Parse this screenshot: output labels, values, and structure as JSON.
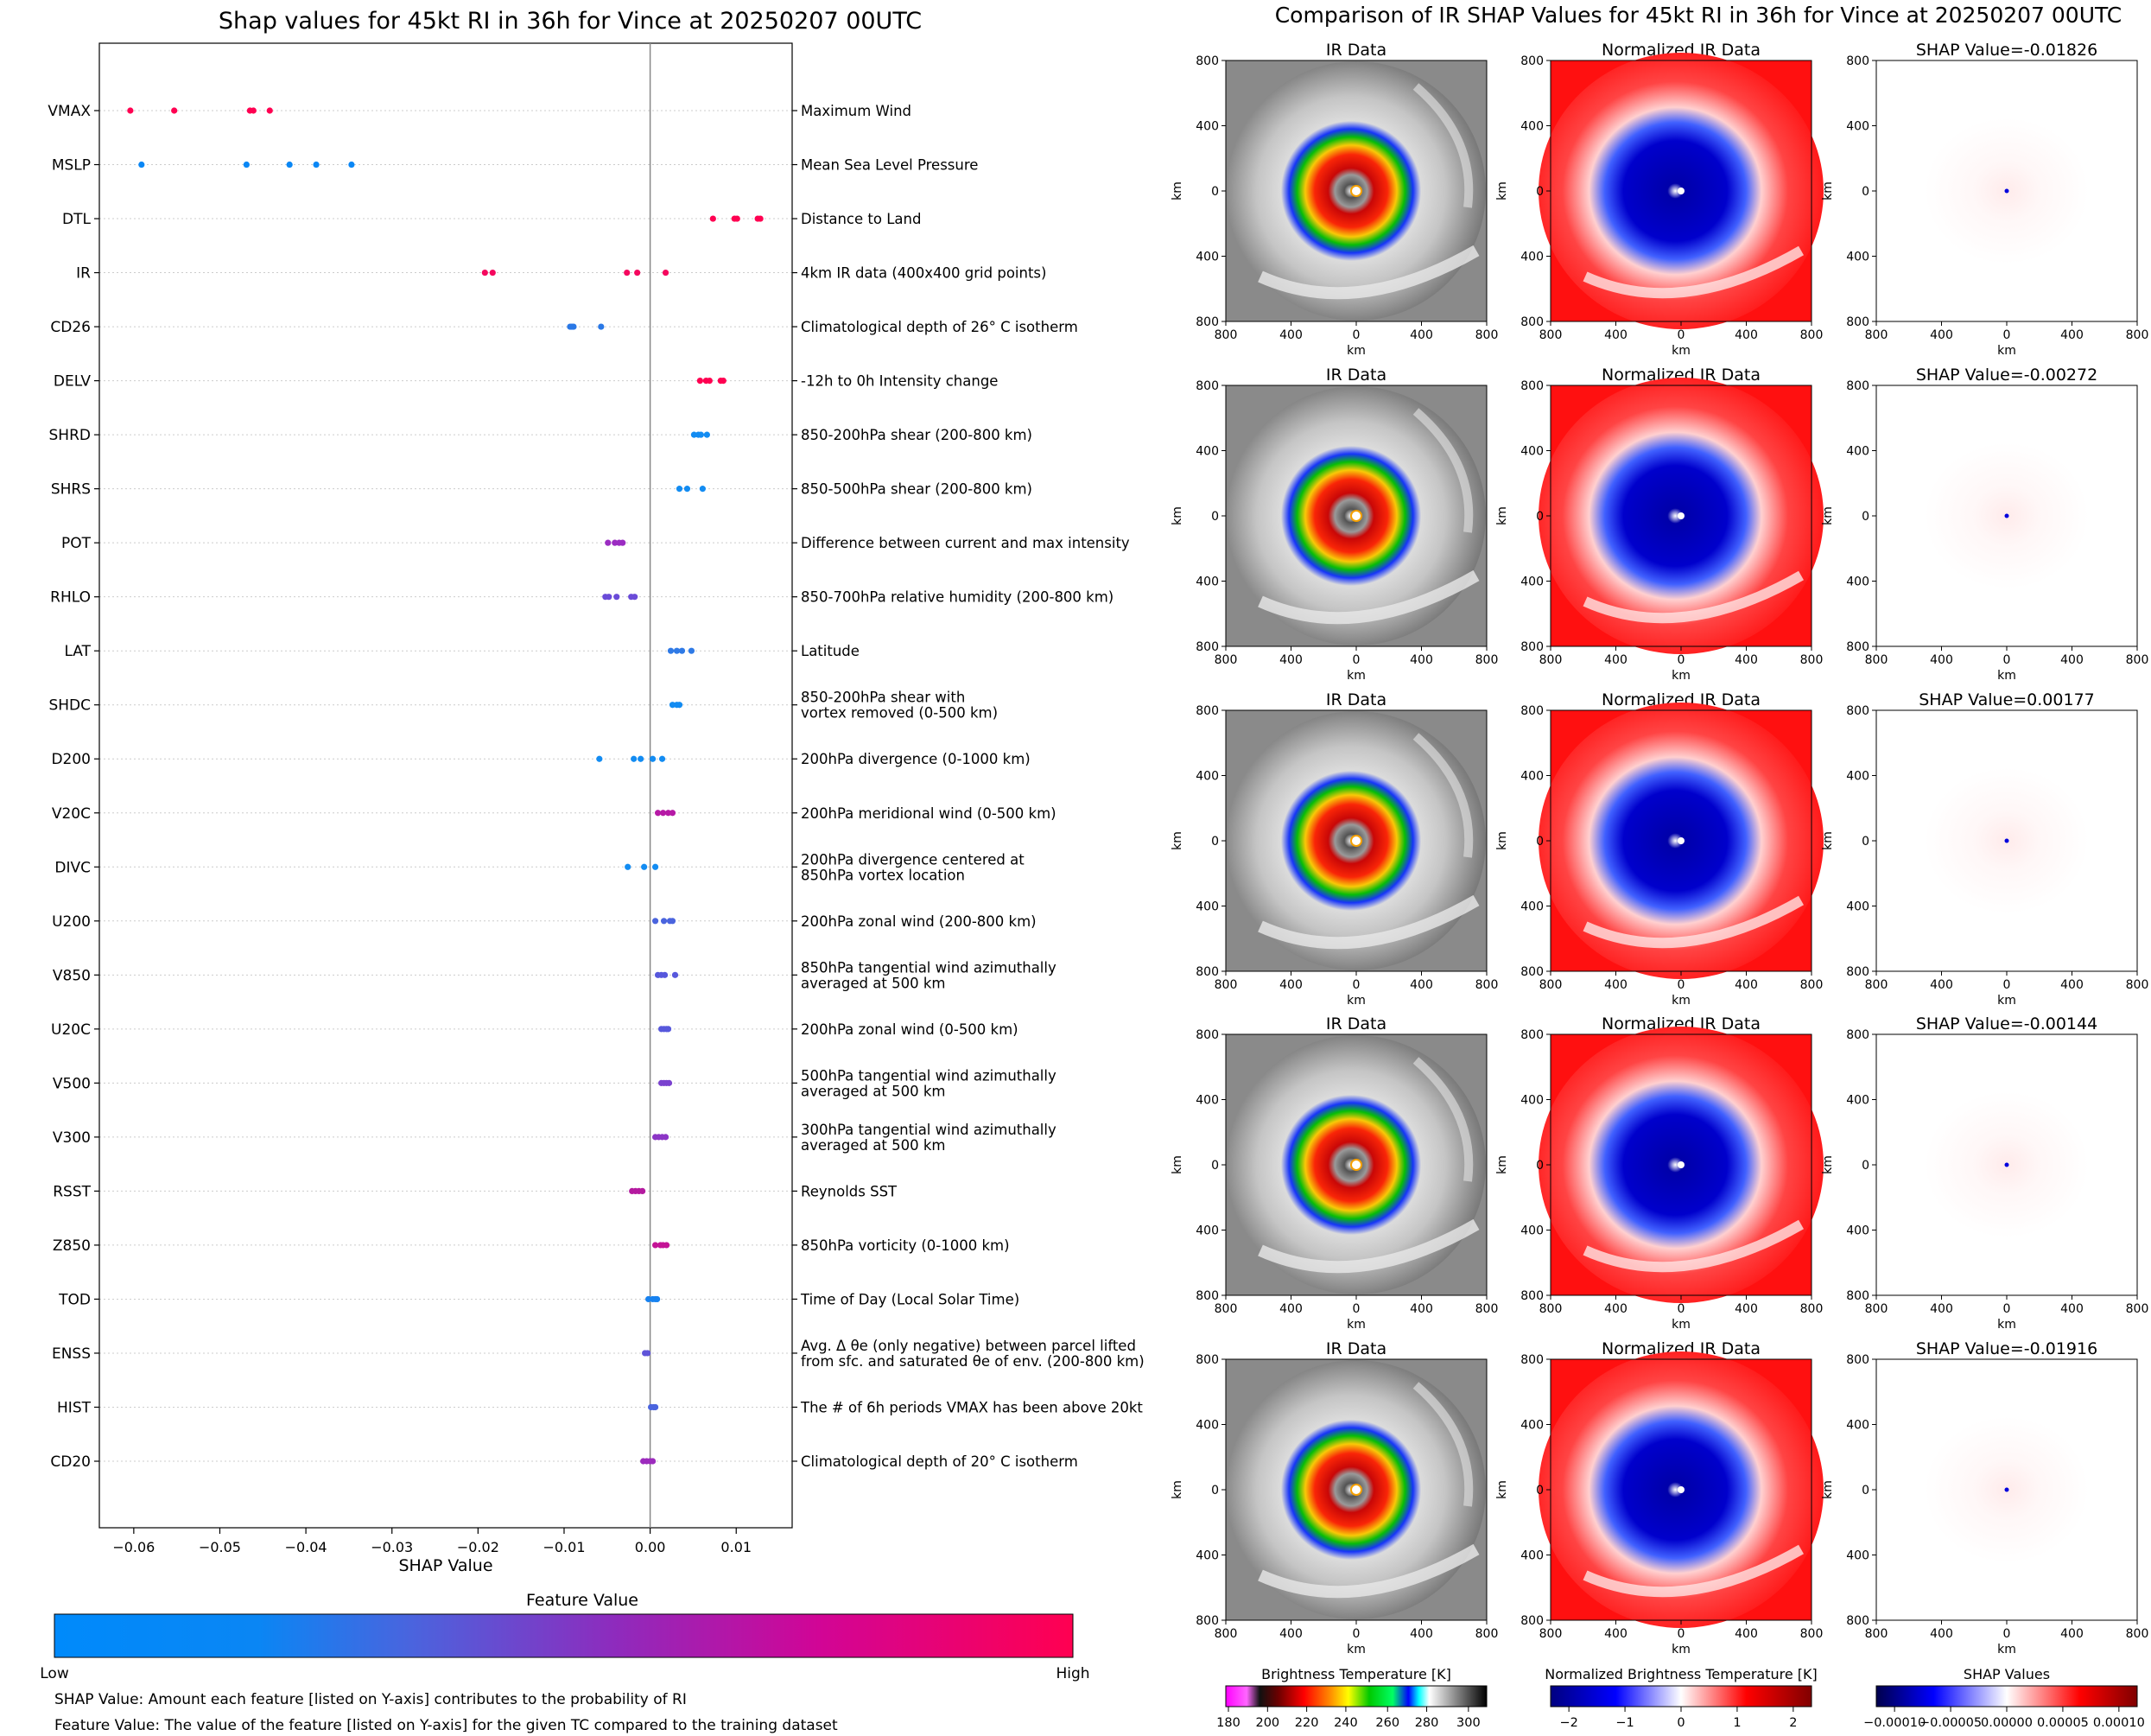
{
  "left": {
    "title": "Shap values for 45kt RI in 36h for Vince at 20250207 00UTC",
    "xlabel": "SHAP Value",
    "colorbar_title": "Feature Value",
    "colorbar_low": "Low",
    "colorbar_high": "High",
    "note1": "SHAP Value: Amount each feature [listed on Y-axis] contributes to the probability of RI",
    "note2": "Feature Value: The value of the feature [listed on Y-axis] for the given TC compared to the training dataset"
  },
  "right": {
    "title": "Comparison of IR SHAP Values for 45kt RI in 36h for Vince at 20250207 00UTC",
    "col_ir": "IR Data",
    "col_norm": "Normalized IR Data",
    "shap_prefix": "SHAP Value=",
    "shap_values": [
      "-0.01826",
      "-0.00272",
      "0.00177",
      "-0.00144",
      "-0.01916"
    ],
    "axis_label": "km",
    "axis_ticks": [
      "800",
      "400",
      "0",
      "400",
      "800"
    ],
    "cb_ir_title": "Brightness Temperature [K]",
    "cb_ir_ticks": [
      "180",
      "200",
      "220",
      "240",
      "260",
      "280",
      "300"
    ],
    "cb_norm_title": "Normalized Brightness Temperature [K]",
    "cb_norm_ticks": [
      "−2",
      "−1",
      "0",
      "1",
      "2"
    ],
    "cb_shap_title": "SHAP Values",
    "cb_shap_ticks": [
      "−0.00010",
      "−0.00005",
      "0.00000",
      "0.00005",
      "0.00010"
    ]
  },
  "colors": {
    "low": "#008afb",
    "mid": "#8e2bbd",
    "high": "#ff0051"
  },
  "chart_data": {
    "type": "scatter",
    "title": "Shap values for 45kt RI in 36h for Vince at 20250207 00UTC",
    "xlabel": "SHAP Value",
    "xlim": [
      -0.064,
      0.0165
    ],
    "xticks": [
      {
        "v": -0.06,
        "label": "−0.06"
      },
      {
        "v": -0.05,
        "label": "−0.05"
      },
      {
        "v": -0.04,
        "label": "−0.04"
      },
      {
        "v": -0.03,
        "label": "−0.03"
      },
      {
        "v": -0.02,
        "label": "−0.02"
      },
      {
        "v": -0.01,
        "label": "−0.01"
      },
      {
        "v": 0.0,
        "label": "0.00"
      },
      {
        "v": 0.01,
        "label": "0.01"
      }
    ],
    "features": [
      {
        "name": "VMAX",
        "desc": [
          "Maximum Wind"
        ],
        "color": "#ff0051",
        "values": [
          -0.0604,
          -0.0553,
          -0.0465,
          -0.0461,
          -0.0442
        ]
      },
      {
        "name": "MSLP",
        "desc": [
          "Mean Sea Level Pressure"
        ],
        "color": "#0a87f5",
        "values": [
          -0.0591,
          -0.0469,
          -0.0419,
          -0.0388,
          -0.0347
        ]
      },
      {
        "name": "DTL",
        "desc": [
          "Distance to Land"
        ],
        "color": "#ff0051",
        "values": [
          0.0073,
          0.0098,
          0.0101,
          0.0125,
          0.0128
        ]
      },
      {
        "name": "IR",
        "desc": [
          "4km IR data (400x400 grid points)"
        ],
        "color": "#f5075e",
        "values": [
          -0.0192,
          -0.0183,
          -0.0027,
          -0.0015,
          0.0018
        ]
      },
      {
        "name": "CD26",
        "desc": [
          "Climatological depth of 26° C isotherm"
        ],
        "color": "#2a78e6",
        "values": [
          -0.0093,
          -0.0091,
          -0.0089,
          -0.0057
        ]
      },
      {
        "name": "DELV",
        "desc": [
          "-12h to 0h Intensity change"
        ],
        "color": "#ff0051",
        "values": [
          0.0058,
          0.0065,
          0.0069,
          0.0082,
          0.0085
        ]
      },
      {
        "name": "SHRD",
        "desc": [
          "850-200hPa shear (200-800 km)"
        ],
        "color": "#138cf2",
        "values": [
          0.0051,
          0.0056,
          0.0059,
          0.0066
        ]
      },
      {
        "name": "SHRS",
        "desc": [
          "850-500hPa shear (200-800 km)"
        ],
        "color": "#138cf2",
        "values": [
          0.0034,
          0.0043,
          0.0061
        ]
      },
      {
        "name": "POT",
        "desc": [
          "Difference between current and max intensity"
        ],
        "color": "#9b2cc2",
        "values": [
          -0.0049,
          -0.0041,
          -0.0036,
          -0.0032
        ]
      },
      {
        "name": "RHLO",
        "desc": [
          "850-700hPa relative humidity (200-800 km)"
        ],
        "color": "#6a4bd8",
        "values": [
          -0.0052,
          -0.0048,
          -0.0039,
          -0.0022,
          -0.0018
        ]
      },
      {
        "name": "LAT",
        "desc": [
          "Latitude"
        ],
        "color": "#2f7ae6",
        "values": [
          0.0024,
          0.0031,
          0.0037,
          0.0048
        ]
      },
      {
        "name": "SHDC",
        "desc": [
          "850-200hPa shear with",
          "vortex removed (0-500 km)"
        ],
        "color": "#138cf2",
        "values": [
          0.0026,
          0.0031,
          0.0034
        ]
      },
      {
        "name": "D200",
        "desc": [
          "200hPa divergence (0-1000 km)"
        ],
        "color": "#138cf2",
        "values": [
          -0.0059,
          -0.0019,
          -0.0011,
          0.0003,
          0.0014
        ]
      },
      {
        "name": "V20C",
        "desc": [
          "200hPa meridional wind (0-500 km)"
        ],
        "color": "#b61aa6",
        "values": [
          0.0009,
          0.0015,
          0.0021,
          0.0026
        ]
      },
      {
        "name": "DIVC",
        "desc": [
          "200hPa divergence centered at",
          "850hPa vortex location"
        ],
        "color": "#138cf2",
        "values": [
          -0.0026,
          -0.0007,
          0.0006
        ]
      },
      {
        "name": "U200",
        "desc": [
          "200hPa zonal wind (200-800 km)"
        ],
        "color": "#4a64de",
        "values": [
          0.0006,
          0.0016,
          0.0023,
          0.0026
        ]
      },
      {
        "name": "V850",
        "desc": [
          "850hPa tangential wind azimuthally",
          "averaged at 500 km"
        ],
        "color": "#5758dc",
        "values": [
          0.0009,
          0.0013,
          0.0017,
          0.0029
        ]
      },
      {
        "name": "U20C",
        "desc": [
          "200hPa zonal wind (0-500 km)"
        ],
        "color": "#5758dc",
        "values": [
          0.0013,
          0.0016,
          0.0019,
          0.0021
        ]
      },
      {
        "name": "V500",
        "desc": [
          "500hPa tangential wind azimuthally",
          "averaged at 500 km"
        ],
        "color": "#7a42cf",
        "values": [
          0.0013,
          0.0016,
          0.0019,
          0.0022
        ]
      },
      {
        "name": "V300",
        "desc": [
          "300hPa tangential wind azimuthally",
          "averaged at 500 km"
        ],
        "color": "#8c36c6",
        "values": [
          0.0006,
          0.001,
          0.0014,
          0.0018
        ]
      },
      {
        "name": "RSST",
        "desc": [
          "Reynolds SST"
        ],
        "color": "#b41a9f",
        "values": [
          -0.0021,
          -0.0017,
          -0.0013,
          -0.0009
        ]
      },
      {
        "name": "Z850",
        "desc": [
          "850hPa vorticity (0-1000 km)"
        ],
        "color": "#c41496",
        "values": [
          0.0006,
          0.0012,
          0.0015,
          0.0019
        ]
      },
      {
        "name": "TOD",
        "desc": [
          "Time of Day (Local Solar Time)"
        ],
        "color": "#1782f0",
        "values": [
          -0.0002,
          0.0003,
          0.0006,
          0.0008
        ]
      },
      {
        "name": "ENSS",
        "desc": [
          "Avg. Δ θe (only negative) between parcel lifted",
          "from sfc. and saturated θe of env. (200-800 km)"
        ],
        "color": "#5f54d8",
        "values": [
          -0.0006,
          -0.0003
        ]
      },
      {
        "name": "HIST",
        "desc": [
          "The # of 6h periods VMAX has been above 20kt"
        ],
        "color": "#4a64de",
        "values": [
          0.0001,
          0.0004,
          0.0006
        ]
      },
      {
        "name": "CD20",
        "desc": [
          "Climatological depth of 20° C isotherm"
        ],
        "color": "#9c2bbd",
        "values": [
          -0.0008,
          -0.0004,
          0.0,
          0.0003
        ]
      }
    ]
  }
}
